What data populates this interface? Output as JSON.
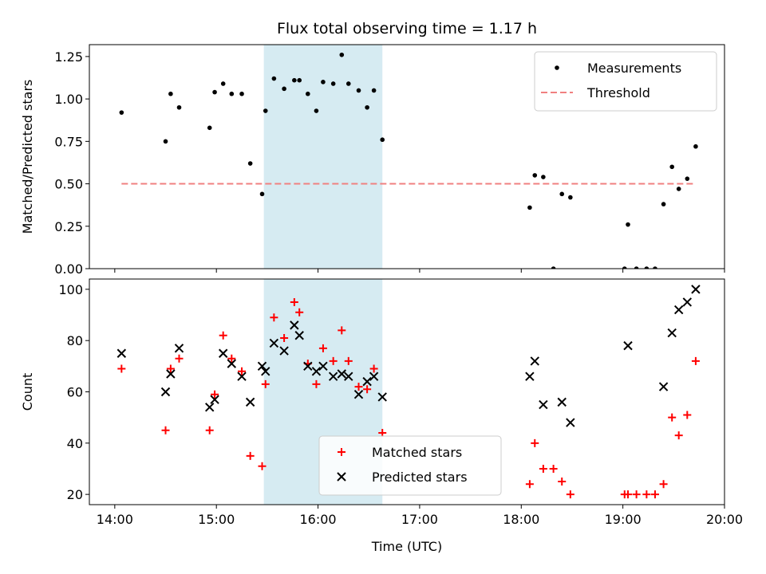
{
  "chart_data": [
    {
      "type": "scatter",
      "title": "Flux total observing time = 1.17 h",
      "xlabel": "",
      "ylabel": "Matched/Predicted stars",
      "xlim": [
        "13:45",
        "20:00"
      ],
      "ylim": [
        0,
        1.32
      ],
      "yticks": [
        "0.00",
        "0.25",
        "0.50",
        "0.75",
        "1.00",
        "1.25"
      ],
      "ytick_values": [
        0,
        0.25,
        0.5,
        0.75,
        1.0,
        1.25
      ],
      "shaded_interval": [
        "15:28",
        "16:38"
      ],
      "legend_position": "upper right",
      "series": [
        {
          "name": "Measurements",
          "marker": "dot",
          "color": "#000000",
          "points": [
            [
              "14:04",
              0.92
            ],
            [
              "14:30",
              0.75
            ],
            [
              "14:33",
              1.03
            ],
            [
              "14:38",
              0.95
            ],
            [
              "14:56",
              0.83
            ],
            [
              "14:59",
              1.04
            ],
            [
              "15:04",
              1.09
            ],
            [
              "15:09",
              1.03
            ],
            [
              "15:15",
              1.03
            ],
            [
              "15:20",
              0.62
            ],
            [
              "15:27",
              0.44
            ],
            [
              "15:29",
              0.93
            ],
            [
              "15:34",
              1.12
            ],
            [
              "15:40",
              1.06
            ],
            [
              "15:46",
              1.11
            ],
            [
              "15:49",
              1.11
            ],
            [
              "15:54",
              1.03
            ],
            [
              "15:59",
              0.93
            ],
            [
              "16:03",
              1.1
            ],
            [
              "16:09",
              1.09
            ],
            [
              "16:14",
              1.26
            ],
            [
              "16:18",
              1.09
            ],
            [
              "16:24",
              1.05
            ],
            [
              "16:29",
              0.95
            ],
            [
              "16:33",
              1.05
            ],
            [
              "16:38",
              0.76
            ],
            [
              "18:05",
              0.36
            ],
            [
              "18:08",
              0.55
            ],
            [
              "18:13",
              0.54
            ],
            [
              "18:19",
              0.0
            ],
            [
              "18:24",
              0.44
            ],
            [
              "18:29",
              0.42
            ],
            [
              "19:01",
              0.0
            ],
            [
              "19:03",
              0.26
            ],
            [
              "19:08",
              0.0
            ],
            [
              "19:14",
              0.0
            ],
            [
              "19:19",
              0.0
            ],
            [
              "19:24",
              0.38
            ],
            [
              "19:29",
              0.6
            ],
            [
              "19:33",
              0.47
            ],
            [
              "19:38",
              0.53
            ],
            [
              "19:43",
              0.72
            ]
          ]
        },
        {
          "name": "Threshold",
          "marker": "dashed-line",
          "color": "#f08080",
          "points": [
            [
              "14:04",
              0.5
            ],
            [
              "19:43",
              0.5
            ]
          ]
        }
      ]
    },
    {
      "type": "scatter",
      "title": "",
      "xlabel": "Time (UTC)",
      "ylabel": "Count",
      "xlim": [
        "13:45",
        "20:00"
      ],
      "ylim": [
        16,
        104
      ],
      "xticks": [
        "14:00",
        "15:00",
        "16:00",
        "17:00",
        "18:00",
        "19:00",
        "20:00"
      ],
      "yticks": [
        "20",
        "40",
        "60",
        "80",
        "100"
      ],
      "ytick_values": [
        20,
        40,
        60,
        80,
        100
      ],
      "shaded_interval": [
        "15:28",
        "16:38"
      ],
      "legend_position": "lower center",
      "series": [
        {
          "name": "Matched stars",
          "marker": "plus",
          "color": "#ff0000",
          "points": [
            [
              "14:04",
              69
            ],
            [
              "14:30",
              45
            ],
            [
              "14:33",
              69
            ],
            [
              "14:38",
              73
            ],
            [
              "14:56",
              45
            ],
            [
              "14:59",
              59
            ],
            [
              "15:04",
              82
            ],
            [
              "15:09",
              73
            ],
            [
              "15:15",
              68
            ],
            [
              "15:20",
              35
            ],
            [
              "15:27",
              31
            ],
            [
              "15:29",
              63
            ],
            [
              "15:34",
              89
            ],
            [
              "15:40",
              81
            ],
            [
              "15:46",
              95
            ],
            [
              "15:49",
              91
            ],
            [
              "15:54",
              71
            ],
            [
              "15:59",
              63
            ],
            [
              "16:03",
              77
            ],
            [
              "16:09",
              72
            ],
            [
              "16:14",
              84
            ],
            [
              "16:18",
              72
            ],
            [
              "16:24",
              62
            ],
            [
              "16:29",
              61
            ],
            [
              "16:33",
              69
            ],
            [
              "16:38",
              44
            ],
            [
              "18:05",
              24
            ],
            [
              "18:08",
              40
            ],
            [
              "18:13",
              30
            ],
            [
              "18:19",
              30
            ],
            [
              "18:24",
              25
            ],
            [
              "18:29",
              20
            ],
            [
              "19:01",
              20
            ],
            [
              "19:03",
              20
            ],
            [
              "19:08",
              20
            ],
            [
              "19:14",
              20
            ],
            [
              "19:19",
              20
            ],
            [
              "19:24",
              24
            ],
            [
              "19:29",
              50
            ],
            [
              "19:33",
              43
            ],
            [
              "19:38",
              51
            ],
            [
              "19:43",
              72
            ]
          ]
        },
        {
          "name": "Predicted stars",
          "marker": "x",
          "color": "#000000",
          "points": [
            [
              "14:04",
              75
            ],
            [
              "14:30",
              60
            ],
            [
              "14:33",
              67
            ],
            [
              "14:38",
              77
            ],
            [
              "14:56",
              54
            ],
            [
              "14:59",
              57
            ],
            [
              "15:04",
              75
            ],
            [
              "15:09",
              71
            ],
            [
              "15:15",
              66
            ],
            [
              "15:20",
              56
            ],
            [
              "15:27",
              70
            ],
            [
              "15:29",
              68
            ],
            [
              "15:34",
              79
            ],
            [
              "15:40",
              76
            ],
            [
              "15:46",
              86
            ],
            [
              "15:49",
              82
            ],
            [
              "15:54",
              70
            ],
            [
              "15:59",
              68
            ],
            [
              "16:03",
              70
            ],
            [
              "16:09",
              66
            ],
            [
              "16:14",
              67
            ],
            [
              "16:18",
              66
            ],
            [
              "16:24",
              59
            ],
            [
              "16:29",
              64
            ],
            [
              "16:33",
              66
            ],
            [
              "16:38",
              58
            ],
            [
              "18:05",
              66
            ],
            [
              "18:08",
              72
            ],
            [
              "18:13",
              55
            ],
            [
              "18:24",
              56
            ],
            [
              "18:29",
              48
            ],
            [
              "19:03",
              78
            ],
            [
              "19:24",
              62
            ],
            [
              "19:29",
              83
            ],
            [
              "19:33",
              92
            ],
            [
              "19:38",
              95
            ],
            [
              "19:43",
              100
            ]
          ]
        }
      ]
    }
  ],
  "colors": {
    "shade": "#add8e6",
    "axis": "#000000",
    "legend_border": "#cccccc"
  }
}
